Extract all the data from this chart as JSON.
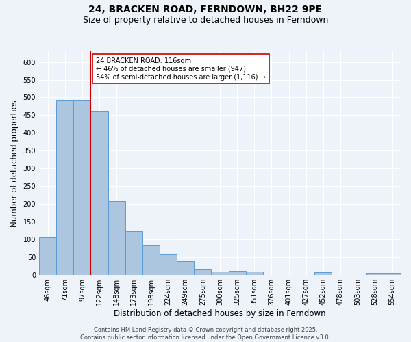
{
  "title": "24, BRACKEN ROAD, FERNDOWN, BH22 9PE",
  "subtitle": "Size of property relative to detached houses in Ferndown",
  "xlabel": "Distribution of detached houses by size in Ferndown",
  "ylabel": "Number of detached properties",
  "categories": [
    "46sqm",
    "71sqm",
    "97sqm",
    "122sqm",
    "148sqm",
    "173sqm",
    "198sqm",
    "224sqm",
    "249sqm",
    "275sqm",
    "300sqm",
    "325sqm",
    "351sqm",
    "376sqm",
    "401sqm",
    "427sqm",
    "452sqm",
    "478sqm",
    "503sqm",
    "528sqm",
    "554sqm"
  ],
  "values": [
    107,
    493,
    493,
    460,
    208,
    124,
    84,
    57,
    38,
    15,
    9,
    12,
    10,
    1,
    0,
    0,
    7,
    0,
    0,
    5,
    5
  ],
  "bar_color": "#adc6e0",
  "bar_edge_color": "#5b9bd5",
  "vline_color": "#cc0000",
  "vline_x_index": 3,
  "annotation_text": "24 BRACKEN ROAD: 116sqm\n← 46% of detached houses are smaller (947)\n54% of semi-detached houses are larger (1,116) →",
  "annotation_box_facecolor": "#ffffff",
  "annotation_box_edgecolor": "#cc0000",
  "footer_text": "Contains HM Land Registry data © Crown copyright and database right 2025.\nContains public sector information licensed under the Open Government Licence v3.0.",
  "ylim": [
    0,
    630
  ],
  "yticks": [
    0,
    50,
    100,
    150,
    200,
    250,
    300,
    350,
    400,
    450,
    500,
    550,
    600
  ],
  "bg_color": "#eef2f9",
  "grid_color": "#ffffff",
  "title_fontsize": 10,
  "subtitle_fontsize": 9,
  "tick_fontsize": 7,
  "label_fontsize": 8.5,
  "footer_fontsize": 6,
  "annot_fontsize": 7
}
